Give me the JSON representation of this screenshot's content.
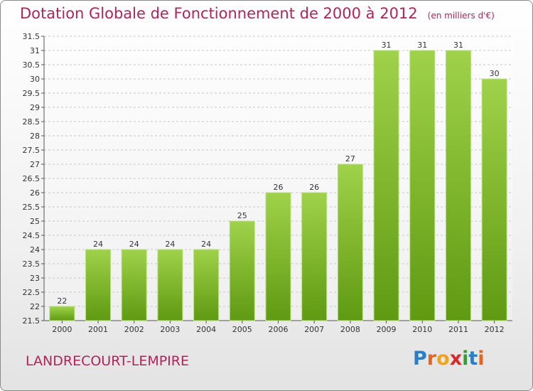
{
  "header": {
    "title": "Dotation Globale de Fonctionnement de 2000 à 2012",
    "subtitle": "(en milliers d'€)"
  },
  "footer": {
    "city": "LANDRECOURT-LEMPIRE",
    "logo_letters": [
      "P",
      "r",
      "o",
      "x",
      "i",
      "t",
      "i"
    ],
    "logo_colors": [
      "#2a7fc4",
      "#e8641e",
      "#f0a31c",
      "#d42a2a",
      "#3a9b3a",
      "#2a7fc4",
      "#e8641e"
    ]
  },
  "colors": {
    "bar_light": "#9fd24a",
    "bar_dark": "#5f9a12",
    "title": "#b0245a"
  },
  "chart_data": {
    "type": "bar",
    "title": "Dotation Globale de Fonctionnement de 2000 à 2012",
    "ylabel": "en milliers d'€",
    "xlabel": "",
    "ylim": [
      21.5,
      31.5
    ],
    "ytick_step": 0.5,
    "grid": true,
    "categories": [
      "2000",
      "2001",
      "2002",
      "2003",
      "2004",
      "2005",
      "2006",
      "2007",
      "2008",
      "2009",
      "2010",
      "2011",
      "2012"
    ],
    "values": [
      22,
      24,
      24,
      24,
      24,
      25,
      26,
      26,
      27,
      31,
      31,
      31,
      30
    ]
  }
}
